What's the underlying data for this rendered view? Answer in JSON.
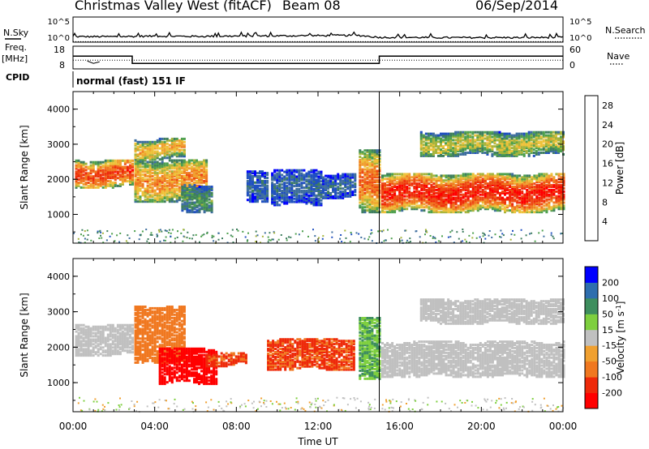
{
  "header": {
    "station": "Christmas Valley West (fitACF)",
    "beam": "Beam 08",
    "date": "06/Sep/2014"
  },
  "left_labels": {
    "nsky": "N.Sky",
    "freq": "Freq.",
    "freq_unit": "[MHz]",
    "cpid": "CPID"
  },
  "right_labels": {
    "nsearch": "N.Search",
    "nave": "Nave"
  },
  "cpid_text": "normal (fast) 151 IF",
  "colors": {
    "power": [
      "#0000ff",
      "#2050c0",
      "#3e6e9e",
      "#3e7e5e",
      "#4ea04e",
      "#a6b43c",
      "#eec23a",
      "#f0a030",
      "#f07820",
      "#ee4a14",
      "#ee2a0a",
      "#ff0000"
    ],
    "velocity": [
      "#ff0000",
      "#ee2a0a",
      "#f07820",
      "#f0a030",
      "#c0c0c0",
      "#7ecf3e",
      "#3e8e5e",
      "#2e6eae",
      "#0000ff"
    ]
  },
  "chart_data": [
    {
      "type": "line",
      "panel": "noise",
      "series": [
        {
          "name": "N.Sky",
          "x": [
            0,
            2,
            4,
            6,
            8,
            10,
            12,
            14,
            15,
            16,
            18,
            20,
            22,
            24
          ],
          "y": [
            1.1,
            1.1,
            1.2,
            1.15,
            1.2,
            1.25,
            1.3,
            1.35,
            0.95,
            0.95,
            0.9,
            0.9,
            0.9,
            0.95
          ]
        },
        {
          "name": "N.Search",
          "x": [
            0,
            24
          ],
          "y": [
            0.1,
            0.1
          ]
        }
      ],
      "yticks_left": [
        "10^5",
        "10^0"
      ],
      "yticks_right": [
        "10^5",
        "10^0"
      ]
    },
    {
      "type": "line",
      "panel": "frequency",
      "series": [
        {
          "name": "Freq",
          "x": [
            0,
            2.9,
            2.9,
            15,
            15,
            24
          ],
          "y": [
            13.6,
            13.6,
            10.4,
            10.4,
            13.6,
            13.6
          ]
        },
        {
          "name": "Nave",
          "x": [
            0,
            24
          ],
          "y": [
            23,
            23
          ]
        }
      ],
      "yticks_left": [
        "18",
        "8"
      ],
      "yticks_right": [
        "60",
        "0"
      ]
    },
    {
      "type": "heatmap",
      "panel": "power",
      "ylabel": "Slant Range [km]",
      "ylim": [
        180,
        4500
      ],
      "yticks": [
        "1000",
        "2000",
        "3000",
        "4000"
      ],
      "colorbar_label": "Power [dB]",
      "colorbar_ticks": [
        "4",
        "8",
        "12",
        "16",
        "20",
        "24",
        "28"
      ],
      "colorbar_range": [
        0,
        30
      ],
      "echo_regions": [
        {
          "t0": 0.1,
          "t1": 2.9,
          "r0": 1800,
          "r1": 2600,
          "value": 25
        },
        {
          "t0": 3.0,
          "t1": 6.5,
          "r0": 1400,
          "r1": 2600,
          "value": 20
        },
        {
          "t0": 3.0,
          "t1": 5.5,
          "r0": 2600,
          "r1": 3200,
          "value": 18
        },
        {
          "t0": 5.3,
          "t1": 6.8,
          "r0": 1100,
          "r1": 1900,
          "value": 10
        },
        {
          "t0": 8.5,
          "t1": 9.5,
          "r0": 1400,
          "r1": 2300,
          "value": 6
        },
        {
          "t0": 9.7,
          "t1": 12.2,
          "r0": 1300,
          "r1": 2300,
          "value": 6
        },
        {
          "t0": 12.2,
          "t1": 13.8,
          "r0": 1500,
          "r1": 2200,
          "value": 6
        },
        {
          "t0": 14.0,
          "t1": 15.0,
          "r0": 1100,
          "r1": 2900,
          "value": 22
        },
        {
          "t0": 15.1,
          "t1": 24.0,
          "r0": 1100,
          "r1": 2200,
          "value": 27
        },
        {
          "t0": 17.0,
          "t1": 24.0,
          "r0": 2700,
          "r1": 3400,
          "value": 15
        }
      ]
    },
    {
      "type": "heatmap",
      "panel": "velocity",
      "ylabel": "Slant Range [km]",
      "ylim": [
        180,
        4500
      ],
      "yticks": [
        "1000",
        "2000",
        "3000",
        "4000"
      ],
      "colorbar_label": "Velocity [m s",
      "colorbar_label_sup": "-1",
      "colorbar_label_end": "]",
      "colorbar_ticks": [
        "200",
        "100",
        "50",
        "15",
        "-15",
        "-50",
        "-100",
        "-200"
      ],
      "echo_regions": [
        {
          "t0": 0.1,
          "t1": 2.9,
          "r0": 1800,
          "r1": 2700,
          "value": 0
        },
        {
          "t0": 3.0,
          "t1": 5.5,
          "r0": 1600,
          "r1": 3200,
          "value": -60
        },
        {
          "t0": 4.2,
          "t1": 7.0,
          "r0": 1000,
          "r1": 2000,
          "value": -180
        },
        {
          "t0": 6.5,
          "t1": 8.5,
          "r0": 1500,
          "r1": 1900,
          "value": -80
        },
        {
          "t0": 9.5,
          "t1": 13.8,
          "r0": 1400,
          "r1": 2300,
          "value": -80
        },
        {
          "t0": 14.0,
          "t1": 15.0,
          "r0": 1100,
          "r1": 2900,
          "value": 30
        },
        {
          "t0": 15.1,
          "t1": 24.0,
          "r0": 1200,
          "r1": 2200,
          "value": 0
        },
        {
          "t0": 17.0,
          "t1": 24.0,
          "r0": 2700,
          "r1": 3400,
          "value": 0
        }
      ]
    }
  ],
  "x_axis": {
    "ticks": [
      "00:00",
      "04:00",
      "08:00",
      "12:00",
      "16:00",
      "20:00",
      "00:00"
    ],
    "label": "Time UT",
    "range": [
      0,
      24
    ]
  }
}
